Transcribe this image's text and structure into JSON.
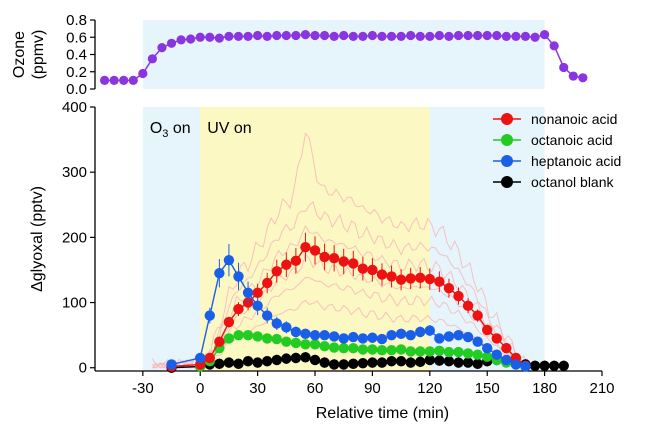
{
  "chart_data": [
    {
      "type": "line",
      "ylabel": "Ozone\n(ppmv)",
      "xlim": [
        -55,
        210
      ],
      "ylim": [
        0,
        0.8
      ],
      "yticks": [
        "0.0",
        "0.2",
        "0.4",
        "0.6",
        "0.8"
      ],
      "shaded_region": {
        "x_start": -30,
        "x_end": 180,
        "color": "#e6f5fb"
      },
      "series": [
        {
          "color": "#8b35e0",
          "x": [
            -50,
            -45,
            -40,
            -35,
            -30,
            -25,
            -20,
            -15,
            -10,
            -5,
            0,
            5,
            10,
            15,
            20,
            25,
            30,
            35,
            40,
            45,
            50,
            55,
            60,
            65,
            70,
            75,
            80,
            85,
            90,
            95,
            100,
            105,
            110,
            115,
            120,
            125,
            130,
            135,
            140,
            145,
            150,
            155,
            160,
            165,
            170,
            175,
            180,
            185,
            190,
            195,
            200
          ],
          "y": [
            0.1,
            0.1,
            0.1,
            0.1,
            0.18,
            0.35,
            0.48,
            0.53,
            0.57,
            0.58,
            0.6,
            0.6,
            0.59,
            0.61,
            0.61,
            0.61,
            0.62,
            0.61,
            0.62,
            0.62,
            0.62,
            0.63,
            0.62,
            0.62,
            0.61,
            0.62,
            0.61,
            0.61,
            0.62,
            0.61,
            0.61,
            0.61,
            0.62,
            0.61,
            0.61,
            0.62,
            0.61,
            0.62,
            0.62,
            0.62,
            0.62,
            0.62,
            0.61,
            0.61,
            0.61,
            0.6,
            0.63,
            0.5,
            0.25,
            0.15,
            0.13
          ]
        }
      ]
    },
    {
      "type": "line",
      "xlabel": "Relative time (min)",
      "ylabel": "Δglyoxal (pptv)",
      "xlim": [
        -55,
        210
      ],
      "ylim": [
        -5,
        400
      ],
      "xticks": [
        "-30",
        "0",
        "30",
        "60",
        "90",
        "120",
        "150",
        "180",
        "210"
      ],
      "yticks": [
        "0",
        "100",
        "200",
        "300",
        "400"
      ],
      "annotations": [
        {
          "text_main": "O",
          "text_sub": "3",
          "text_tail": " on"
        },
        {
          "text": "UV on"
        }
      ],
      "shaded_regions": [
        {
          "x_start": -30,
          "x_end": 180,
          "color": "#e6f5fb"
        },
        {
          "x_start": 0,
          "x_end": 120,
          "color": "#fcf8c4"
        }
      ],
      "legend_position": "top-right",
      "series": [
        {
          "name": "nonanoic acid",
          "color": "#ee1111",
          "x": [
            -15,
            0,
            5,
            10,
            15,
            20,
            25,
            30,
            35,
            40,
            45,
            50,
            55,
            60,
            65,
            70,
            75,
            80,
            85,
            90,
            95,
            100,
            105,
            110,
            115,
            120,
            125,
            130,
            135,
            140,
            145,
            150,
            155,
            160,
            165,
            170
          ],
          "y": [
            2,
            5,
            15,
            40,
            70,
            90,
            100,
            115,
            130,
            148,
            158,
            164,
            185,
            180,
            170,
            168,
            163,
            160,
            152,
            150,
            143,
            140,
            135,
            137,
            138,
            136,
            132,
            122,
            110,
            95,
            80,
            58,
            45,
            30,
            15,
            3
          ]
        },
        {
          "name": "octanoic acid",
          "color": "#22cc22",
          "x": [
            0,
            5,
            10,
            15,
            20,
            25,
            30,
            35,
            40,
            45,
            50,
            55,
            60,
            65,
            70,
            75,
            80,
            85,
            90,
            95,
            100,
            105,
            110,
            115,
            120,
            125,
            130,
            135,
            140,
            145,
            150,
            155,
            160,
            165,
            170
          ],
          "y": [
            2,
            10,
            30,
            45,
            50,
            50,
            48,
            45,
            44,
            40,
            38,
            36,
            36,
            33,
            31,
            30,
            30,
            28,
            28,
            27,
            27,
            28,
            25,
            25,
            25,
            26,
            24,
            24,
            22,
            20,
            17,
            12,
            8,
            5,
            2
          ]
        },
        {
          "name": "heptanoic acid",
          "color": "#1a5fe8",
          "x": [
            -15,
            0,
            5,
            10,
            15,
            20,
            25,
            30,
            35,
            40,
            45,
            50,
            55,
            60,
            65,
            70,
            75,
            80,
            85,
            90,
            95,
            100,
            105,
            110,
            115,
            120,
            125,
            130,
            135,
            140,
            145,
            150,
            155,
            160,
            165,
            170
          ],
          "y": [
            5,
            15,
            80,
            145,
            165,
            140,
            115,
            95,
            80,
            68,
            62,
            55,
            52,
            50,
            50,
            48,
            45,
            47,
            45,
            46,
            44,
            50,
            52,
            50,
            55,
            57,
            45,
            48,
            50,
            47,
            40,
            30,
            20,
            12,
            5,
            2
          ]
        },
        {
          "name": "octanol blank",
          "color": "#000000",
          "x": [
            -15,
            0,
            5,
            10,
            15,
            20,
            25,
            30,
            35,
            40,
            45,
            50,
            55,
            60,
            65,
            70,
            75,
            80,
            85,
            90,
            95,
            100,
            105,
            110,
            115,
            120,
            125,
            130,
            135,
            140,
            145,
            150,
            155,
            160,
            165,
            170,
            175,
            180,
            185,
            190
          ],
          "y": [
            0,
            2,
            5,
            6,
            8,
            6,
            10,
            8,
            10,
            12,
            14,
            15,
            16,
            12,
            8,
            5,
            5,
            6,
            7,
            8,
            8,
            10,
            10,
            8,
            9,
            12,
            11,
            10,
            8,
            8,
            6,
            10,
            12,
            10,
            6,
            5,
            3,
            3,
            3,
            3
          ]
        }
      ]
    }
  ]
}
